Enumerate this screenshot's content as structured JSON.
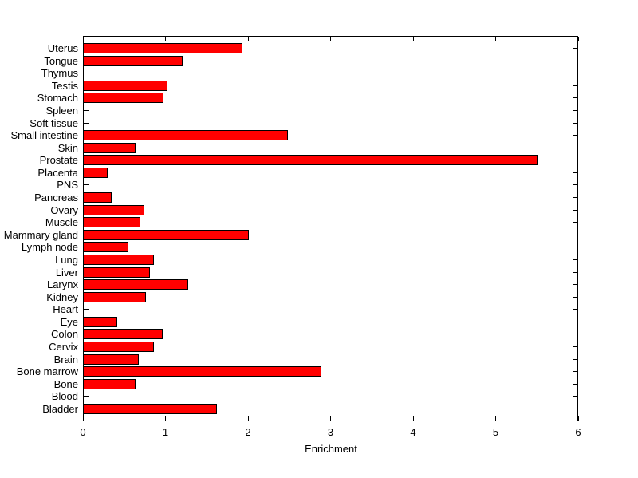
{
  "figure": {
    "background": "#ffffff"
  },
  "chart_data": {
    "type": "bar",
    "orientation": "horizontal",
    "title": "",
    "xlabel": "Enrichment",
    "ylabel": "",
    "xlim": [
      0,
      6
    ],
    "xticks": [
      0,
      1,
      2,
      3,
      4,
      5,
      6
    ],
    "grid": false,
    "legend_position": "none",
    "bar_color": "#ff0000",
    "bar_edge_color": "#000000",
    "axis_color": "#000000",
    "categories": [
      "Uterus",
      "Tongue",
      "Thymus",
      "Testis",
      "Stomach",
      "Spleen",
      "Soft tissue",
      "Small intestine",
      "Skin",
      "Prostate",
      "Placenta",
      "PNS",
      "Pancreas",
      "Ovary",
      "Muscle",
      "Mammary gland",
      "Lymph node",
      "Lung",
      "Liver",
      "Larynx",
      "Kidney",
      "Heart",
      "Eye",
      "Colon",
      "Cervix",
      "Brain",
      "Bone marrow",
      "Bone",
      "Blood",
      "Bladder"
    ],
    "values": [
      1.93,
      1.21,
      0,
      1.02,
      0.98,
      0,
      0,
      2.48,
      0.64,
      5.51,
      0.3,
      0,
      0.35,
      0.74,
      0.7,
      2.01,
      0.55,
      0.86,
      0.81,
      1.28,
      0.76,
      0,
      0.42,
      0.97,
      0.86,
      0.68,
      2.89,
      0.64,
      0,
      1.62
    ]
  }
}
